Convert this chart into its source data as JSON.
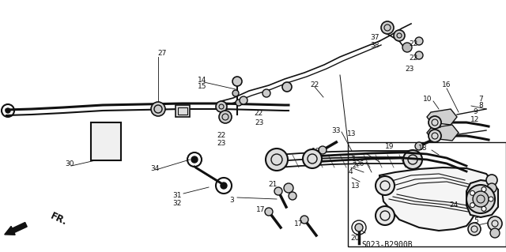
{
  "bg_color": "#ffffff",
  "fg_color": "#111111",
  "diagram_code": "S023-B2900B",
  "font_size": 7.5,
  "small_font_size": 6.5,
  "line_width": 1.0
}
